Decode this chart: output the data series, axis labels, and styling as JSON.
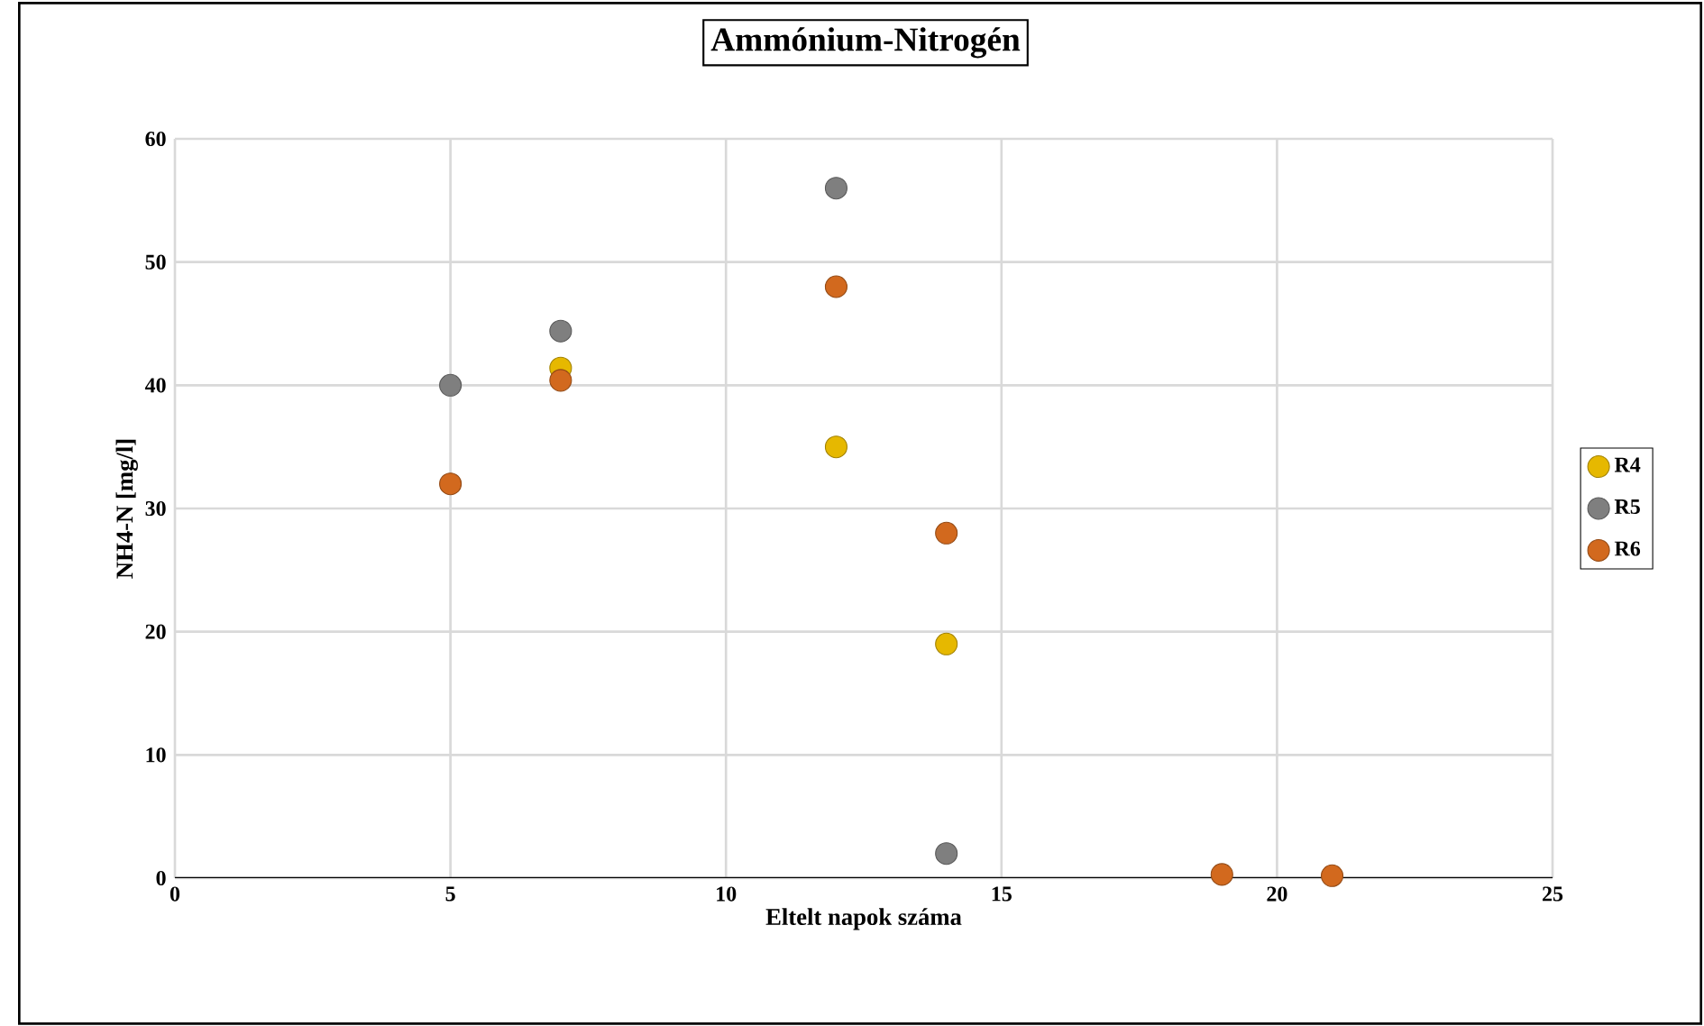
{
  "chart_data": {
    "type": "scatter",
    "title": "Ammónium-Nitrogén",
    "xlabel": "Eltelt napok száma",
    "ylabel": "NH4-N [mg/l]",
    "xlim": [
      0,
      25
    ],
    "xticks": [
      0,
      5,
      10,
      15,
      20,
      25
    ],
    "ylim": [
      0,
      60
    ],
    "yticks": [
      0,
      10,
      20,
      30,
      40,
      50,
      60
    ],
    "grid": true,
    "legend": "right",
    "marker": "circle",
    "series": [
      {
        "name": "R4",
        "color": "#e6b800",
        "x": [
          7,
          12,
          14
        ],
        "values": [
          41.4,
          35,
          19
        ]
      },
      {
        "name": "R5",
        "color": "#7f7f7f",
        "x": [
          5,
          7,
          12,
          14
        ],
        "values": [
          40,
          44.4,
          56,
          2
        ]
      },
      {
        "name": "R6",
        "color": "#d2691e",
        "x": [
          5,
          7,
          12,
          14,
          19,
          21
        ],
        "values": [
          32,
          40.4,
          48,
          28,
          0.3,
          0.2
        ]
      }
    ]
  }
}
